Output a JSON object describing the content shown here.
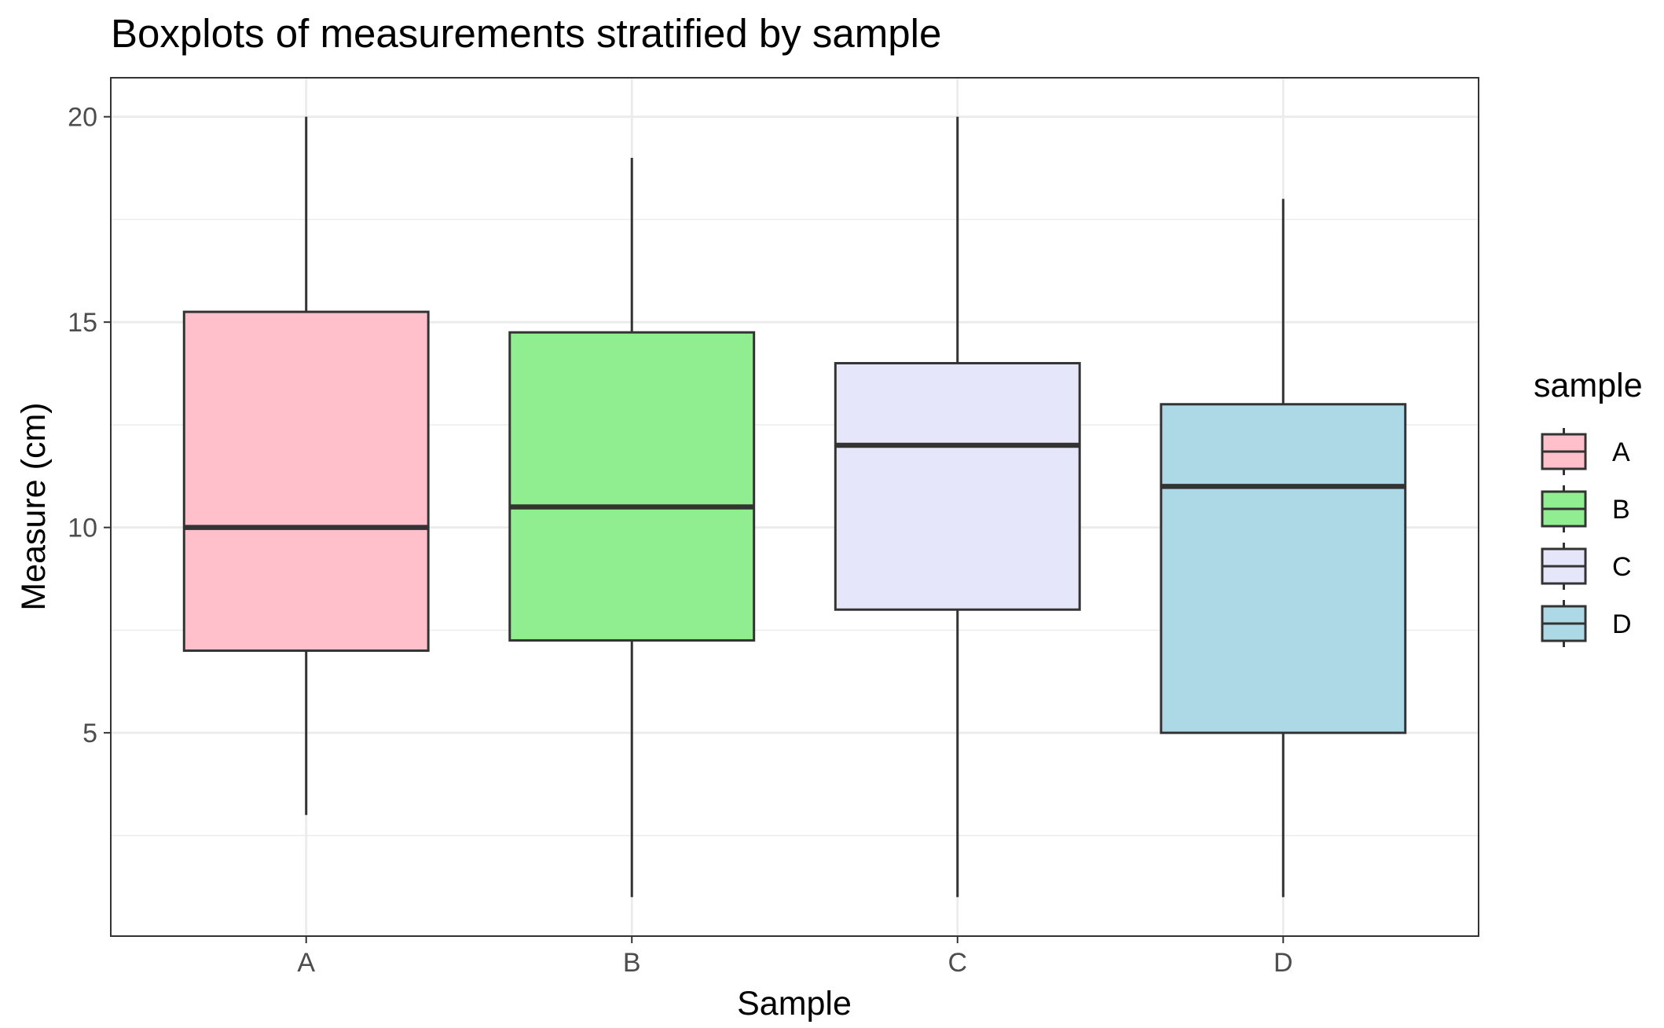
{
  "chart_data": {
    "type": "boxplot",
    "title": "Boxplots of measurements stratified by sample",
    "xlabel": "Sample",
    "ylabel": "Measure (cm)",
    "ylim": [
      0.05,
      20.95
    ],
    "yticks": [
      5,
      10,
      15,
      20
    ],
    "categories": [
      "A",
      "B",
      "C",
      "D"
    ],
    "boxes": [
      {
        "category": "A",
        "min": 3,
        "q1": 7,
        "median": 10,
        "q3": 15.25,
        "max": 20,
        "fill": "#FFC0CB"
      },
      {
        "category": "B",
        "min": 1,
        "q1": 7.25,
        "median": 10.5,
        "q3": 14.75,
        "max": 19,
        "fill": "#90EE90"
      },
      {
        "category": "C",
        "min": 1,
        "q1": 8,
        "median": 12,
        "q3": 14,
        "max": 20,
        "fill": "#E6E6FA"
      },
      {
        "category": "D",
        "min": 1,
        "q1": 5,
        "median": 11,
        "q3": 13,
        "max": 18,
        "fill": "#ADD8E6"
      }
    ],
    "grid": true,
    "legend": {
      "title": "sample",
      "position": "right",
      "entries": [
        "A",
        "B",
        "C",
        "D"
      ]
    }
  },
  "colors": {
    "box_outline": "#333333",
    "gridline": "#EBEBEB",
    "panel_border": "#333333",
    "axis_text": "#4D4D4D",
    "text": "#000000"
  }
}
